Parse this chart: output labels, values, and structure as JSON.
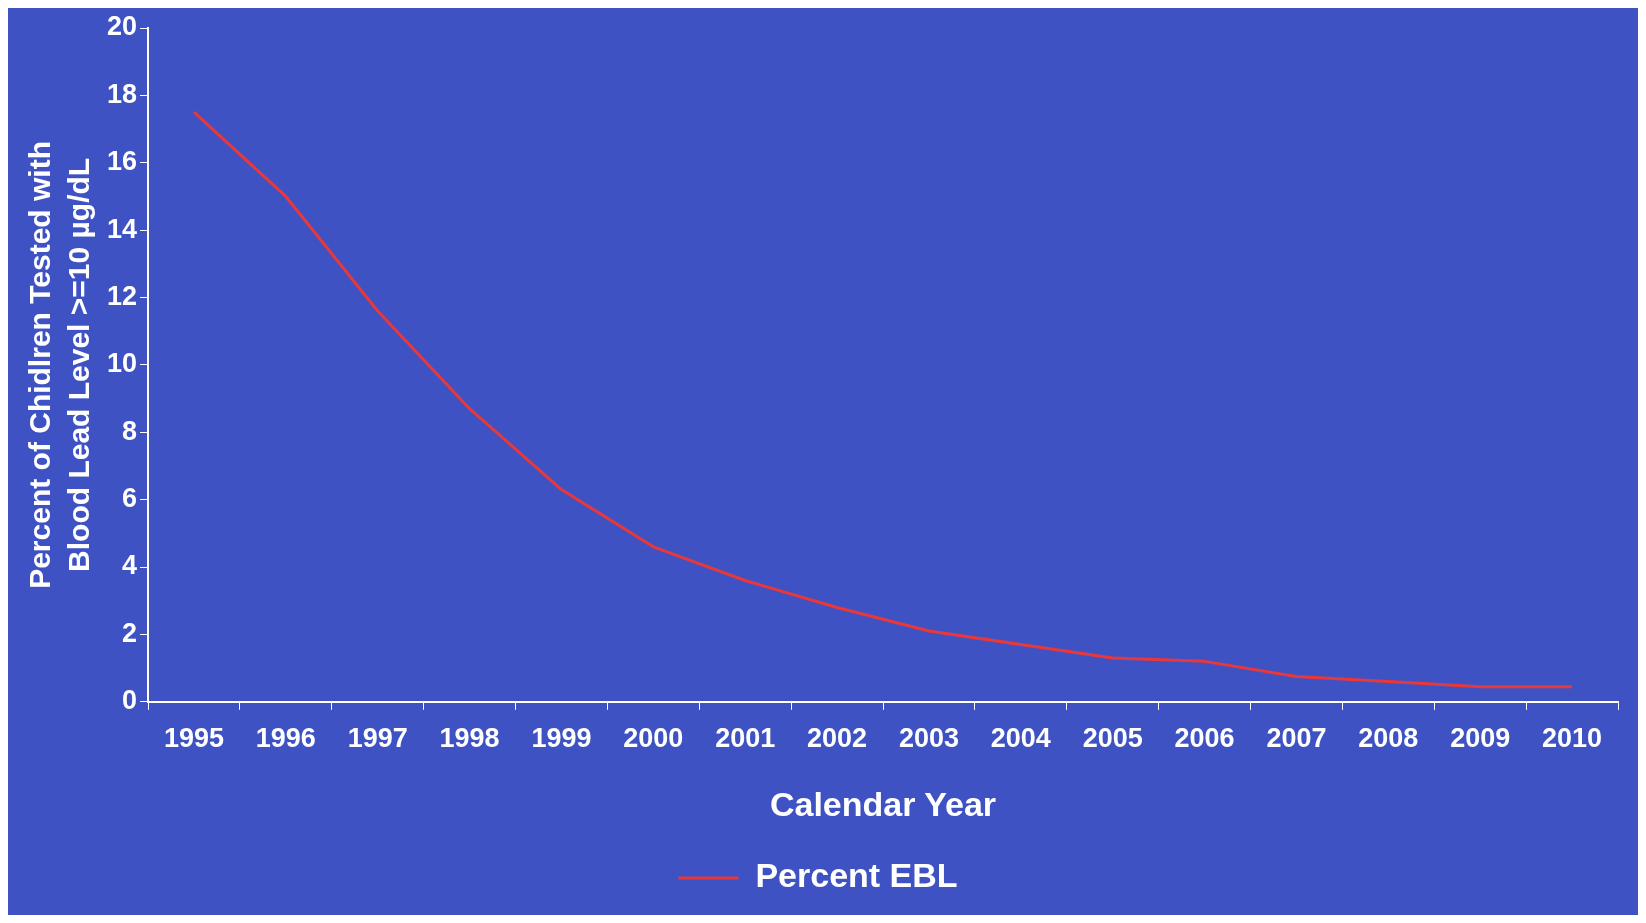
{
  "chart_data": {
    "type": "line",
    "xlabel": "Calendar Year",
    "ylabel": "Percent of Chidlren Tested with Blood Lead Level >=10 µg/dL",
    "categories": [
      "1995",
      "1996",
      "1997",
      "1998",
      "1999",
      "2000",
      "2001",
      "2002",
      "2003",
      "2004",
      "2005",
      "2006",
      "2007",
      "2008",
      "2009",
      "2010"
    ],
    "series": [
      {
        "name": "Percent EBL",
        "color": "#e8383a",
        "values": [
          17.5,
          15.0,
          11.6,
          8.7,
          6.3,
          4.6,
          3.6,
          2.8,
          2.1,
          1.7,
          1.3,
          1.2,
          0.75,
          0.6,
          0.45,
          0.45
        ]
      }
    ],
    "ylim": [
      0,
      20
    ],
    "yticks": [
      0,
      2,
      4,
      6,
      8,
      10,
      12,
      14,
      16,
      18,
      20
    ],
    "legend": "bottom",
    "marker": "none",
    "line_style": "solid"
  }
}
